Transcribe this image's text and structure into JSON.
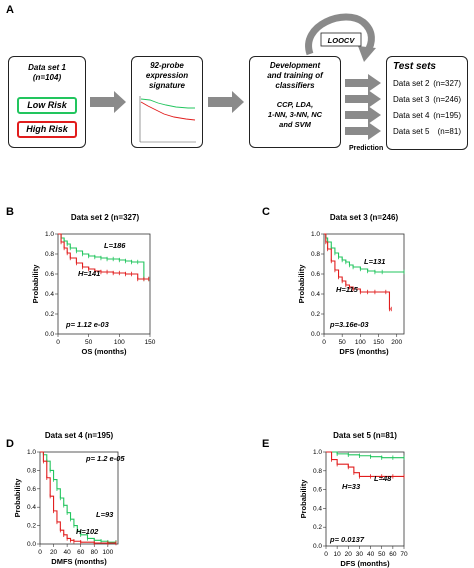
{
  "panel_a": {
    "label": "A",
    "box1": {
      "title": "Data set 1",
      "subtitle": "(n=104)",
      "low": "Low Risk",
      "high": "High Risk"
    },
    "box2": {
      "title_line1": "92-probe",
      "title_line2": "expression",
      "title_line3": "signature"
    },
    "box3": {
      "line1": "Development",
      "line2": "and training of",
      "line3": "classifiers",
      "line4": "CCP, LDA,",
      "line5": "1-NN, 3-NN, NC",
      "line6": "and SVM"
    },
    "loocv": "LOOCV",
    "prediction": "Prediction",
    "test_sets": {
      "title": "Test sets",
      "items": [
        {
          "name": "Data set 2",
          "n": "(n=327)"
        },
        {
          "name": "Data set 3",
          "n": "(n=246)"
        },
        {
          "name": "Data set 4",
          "n": "(n=195)"
        },
        {
          "name": "Data set 5",
          "n": "(n=81)"
        }
      ]
    },
    "colors": {
      "low": "#22c55e",
      "high": "#e11d1d"
    }
  },
  "chart_data": [
    {
      "panel": "B",
      "type": "line",
      "title": "Data set 2 (n=327)",
      "xlabel": "OS (months)",
      "ylabel": "Probability",
      "xlim": [
        0,
        150
      ],
      "ylim": [
        0,
        1.0
      ],
      "xticks": [
        "0",
        "50",
        "100",
        "150"
      ],
      "xtick_vals": [
        0,
        50,
        100,
        150
      ],
      "yticks": [
        "0.0",
        "0.2",
        "0.4",
        "0.6",
        "0.8",
        "1.0"
      ],
      "ytick_vals": [
        0,
        0.2,
        0.4,
        0.6,
        0.8,
        1.0
      ],
      "pvalue": "p= 1.12 e-03",
      "series": [
        {
          "name": "L=186",
          "color": "#22c55e",
          "x": [
            0,
            5,
            10,
            15,
            20,
            30,
            40,
            50,
            60,
            70,
            80,
            90,
            100,
            110,
            120,
            130,
            140,
            148
          ],
          "y": [
            1.0,
            0.96,
            0.93,
            0.9,
            0.86,
            0.83,
            0.8,
            0.78,
            0.77,
            0.76,
            0.75,
            0.75,
            0.74,
            0.73,
            0.72,
            0.72,
            0.55,
            0.55
          ]
        },
        {
          "name": "H=141",
          "color": "#e11d1d",
          "x": [
            0,
            5,
            10,
            15,
            20,
            30,
            40,
            50,
            60,
            70,
            80,
            90,
            100,
            110,
            120,
            130,
            140,
            148
          ],
          "y": [
            1.0,
            0.92,
            0.86,
            0.81,
            0.76,
            0.71,
            0.67,
            0.65,
            0.63,
            0.62,
            0.62,
            0.61,
            0.61,
            0.6,
            0.6,
            0.55,
            0.55,
            0.55
          ]
        }
      ]
    },
    {
      "panel": "C",
      "type": "line",
      "title": "Data set 3 (n=246)",
      "xlabel": "DFS (months)",
      "ylabel": "Probability",
      "xlim": [
        0,
        220
      ],
      "ylim": [
        0,
        1.0
      ],
      "xticks": [
        "0",
        "50",
        "100",
        "150",
        "200"
      ],
      "xtick_vals": [
        0,
        50,
        100,
        150,
        200
      ],
      "yticks": [
        "0.0",
        "0.2",
        "0.4",
        "0.6",
        "0.8",
        "1.0"
      ],
      "ytick_vals": [
        0,
        0.2,
        0.4,
        0.6,
        0.8,
        1.0
      ],
      "pvalue": "p=3.16e-03",
      "series": [
        {
          "name": "L=131",
          "color": "#22c55e",
          "x": [
            0,
            5,
            10,
            20,
            30,
            40,
            50,
            60,
            70,
            80,
            100,
            120,
            140,
            160,
            220
          ],
          "y": [
            1.0,
            0.96,
            0.92,
            0.86,
            0.81,
            0.77,
            0.74,
            0.72,
            0.69,
            0.67,
            0.65,
            0.63,
            0.62,
            0.62,
            0.62
          ]
        },
        {
          "name": "H=115",
          "color": "#e11d1d",
          "x": [
            0,
            5,
            10,
            20,
            30,
            40,
            50,
            60,
            70,
            80,
            100,
            120,
            140,
            170,
            180,
            185
          ],
          "y": [
            1.0,
            0.92,
            0.85,
            0.73,
            0.64,
            0.57,
            0.53,
            0.49,
            0.47,
            0.45,
            0.42,
            0.42,
            0.42,
            0.42,
            0.25,
            0.25
          ]
        }
      ]
    },
    {
      "panel": "D",
      "type": "line",
      "title": "Data set 4 (n=195)",
      "xlabel": "DMFS (months)",
      "ylabel": "Probability",
      "xlim": [
        0,
        115
      ],
      "ylim": [
        0,
        1.0
      ],
      "xticks": [
        "0",
        "20",
        "40",
        "60",
        "80",
        "100"
      ],
      "xtick_vals": [
        0,
        20,
        40,
        60,
        80,
        100
      ],
      "yticks": [
        "0.0",
        "0.2",
        "0.4",
        "0.6",
        "0.8",
        "1.0"
      ],
      "ytick_vals": [
        0,
        0.2,
        0.4,
        0.6,
        0.8,
        1.0
      ],
      "pvalue": "p= 1.2 e-05",
      "series": [
        {
          "name": "L=93",
          "color": "#22c55e",
          "x": [
            0,
            5,
            10,
            15,
            20,
            25,
            30,
            35,
            40,
            45,
            50,
            55,
            60,
            70,
            80,
            90,
            100,
            112
          ],
          "y": [
            1.0,
            0.97,
            0.9,
            0.8,
            0.7,
            0.6,
            0.5,
            0.42,
            0.34,
            0.27,
            0.2,
            0.14,
            0.1,
            0.06,
            0.04,
            0.03,
            0.02,
            0.02
          ]
        },
        {
          "name": "H=102",
          "color": "#e11d1d",
          "x": [
            0,
            5,
            10,
            15,
            20,
            25,
            30,
            35,
            40,
            45,
            50,
            60,
            80,
            100,
            112
          ],
          "y": [
            1.0,
            0.9,
            0.72,
            0.52,
            0.36,
            0.24,
            0.15,
            0.1,
            0.06,
            0.04,
            0.03,
            0.02,
            0.01,
            0.01,
            0.01
          ]
        }
      ]
    },
    {
      "panel": "E",
      "type": "line",
      "title": "Data set 5 (n=81)",
      "xlabel": "DFS (months)",
      "ylabel": "Probability",
      "xlim": [
        0,
        70
      ],
      "ylim": [
        0,
        1.0
      ],
      "xticks": [
        "0",
        "10",
        "20",
        "30",
        "40",
        "50",
        "60",
        "70"
      ],
      "xtick_vals": [
        0,
        10,
        20,
        30,
        40,
        50,
        60,
        70
      ],
      "yticks": [
        "0.0",
        "0.2",
        "0.4",
        "0.6",
        "0.8",
        "1.0"
      ],
      "ytick_vals": [
        0,
        0.2,
        0.4,
        0.6,
        0.8,
        1.0
      ],
      "pvalue": "p= 0.0137",
      "series": [
        {
          "name": "L=48",
          "color": "#22c55e",
          "x": [
            0,
            10,
            20,
            30,
            40,
            50,
            60,
            70
          ],
          "y": [
            1.0,
            0.98,
            0.97,
            0.96,
            0.95,
            0.94,
            0.94,
            0.94
          ]
        },
        {
          "name": "H=33",
          "color": "#e11d1d",
          "x": [
            0,
            5,
            10,
            20,
            25,
            30,
            40,
            50,
            60,
            70
          ],
          "y": [
            1.0,
            0.92,
            0.87,
            0.84,
            0.78,
            0.74,
            0.74,
            0.74,
            0.74,
            0.74
          ]
        }
      ]
    }
  ]
}
